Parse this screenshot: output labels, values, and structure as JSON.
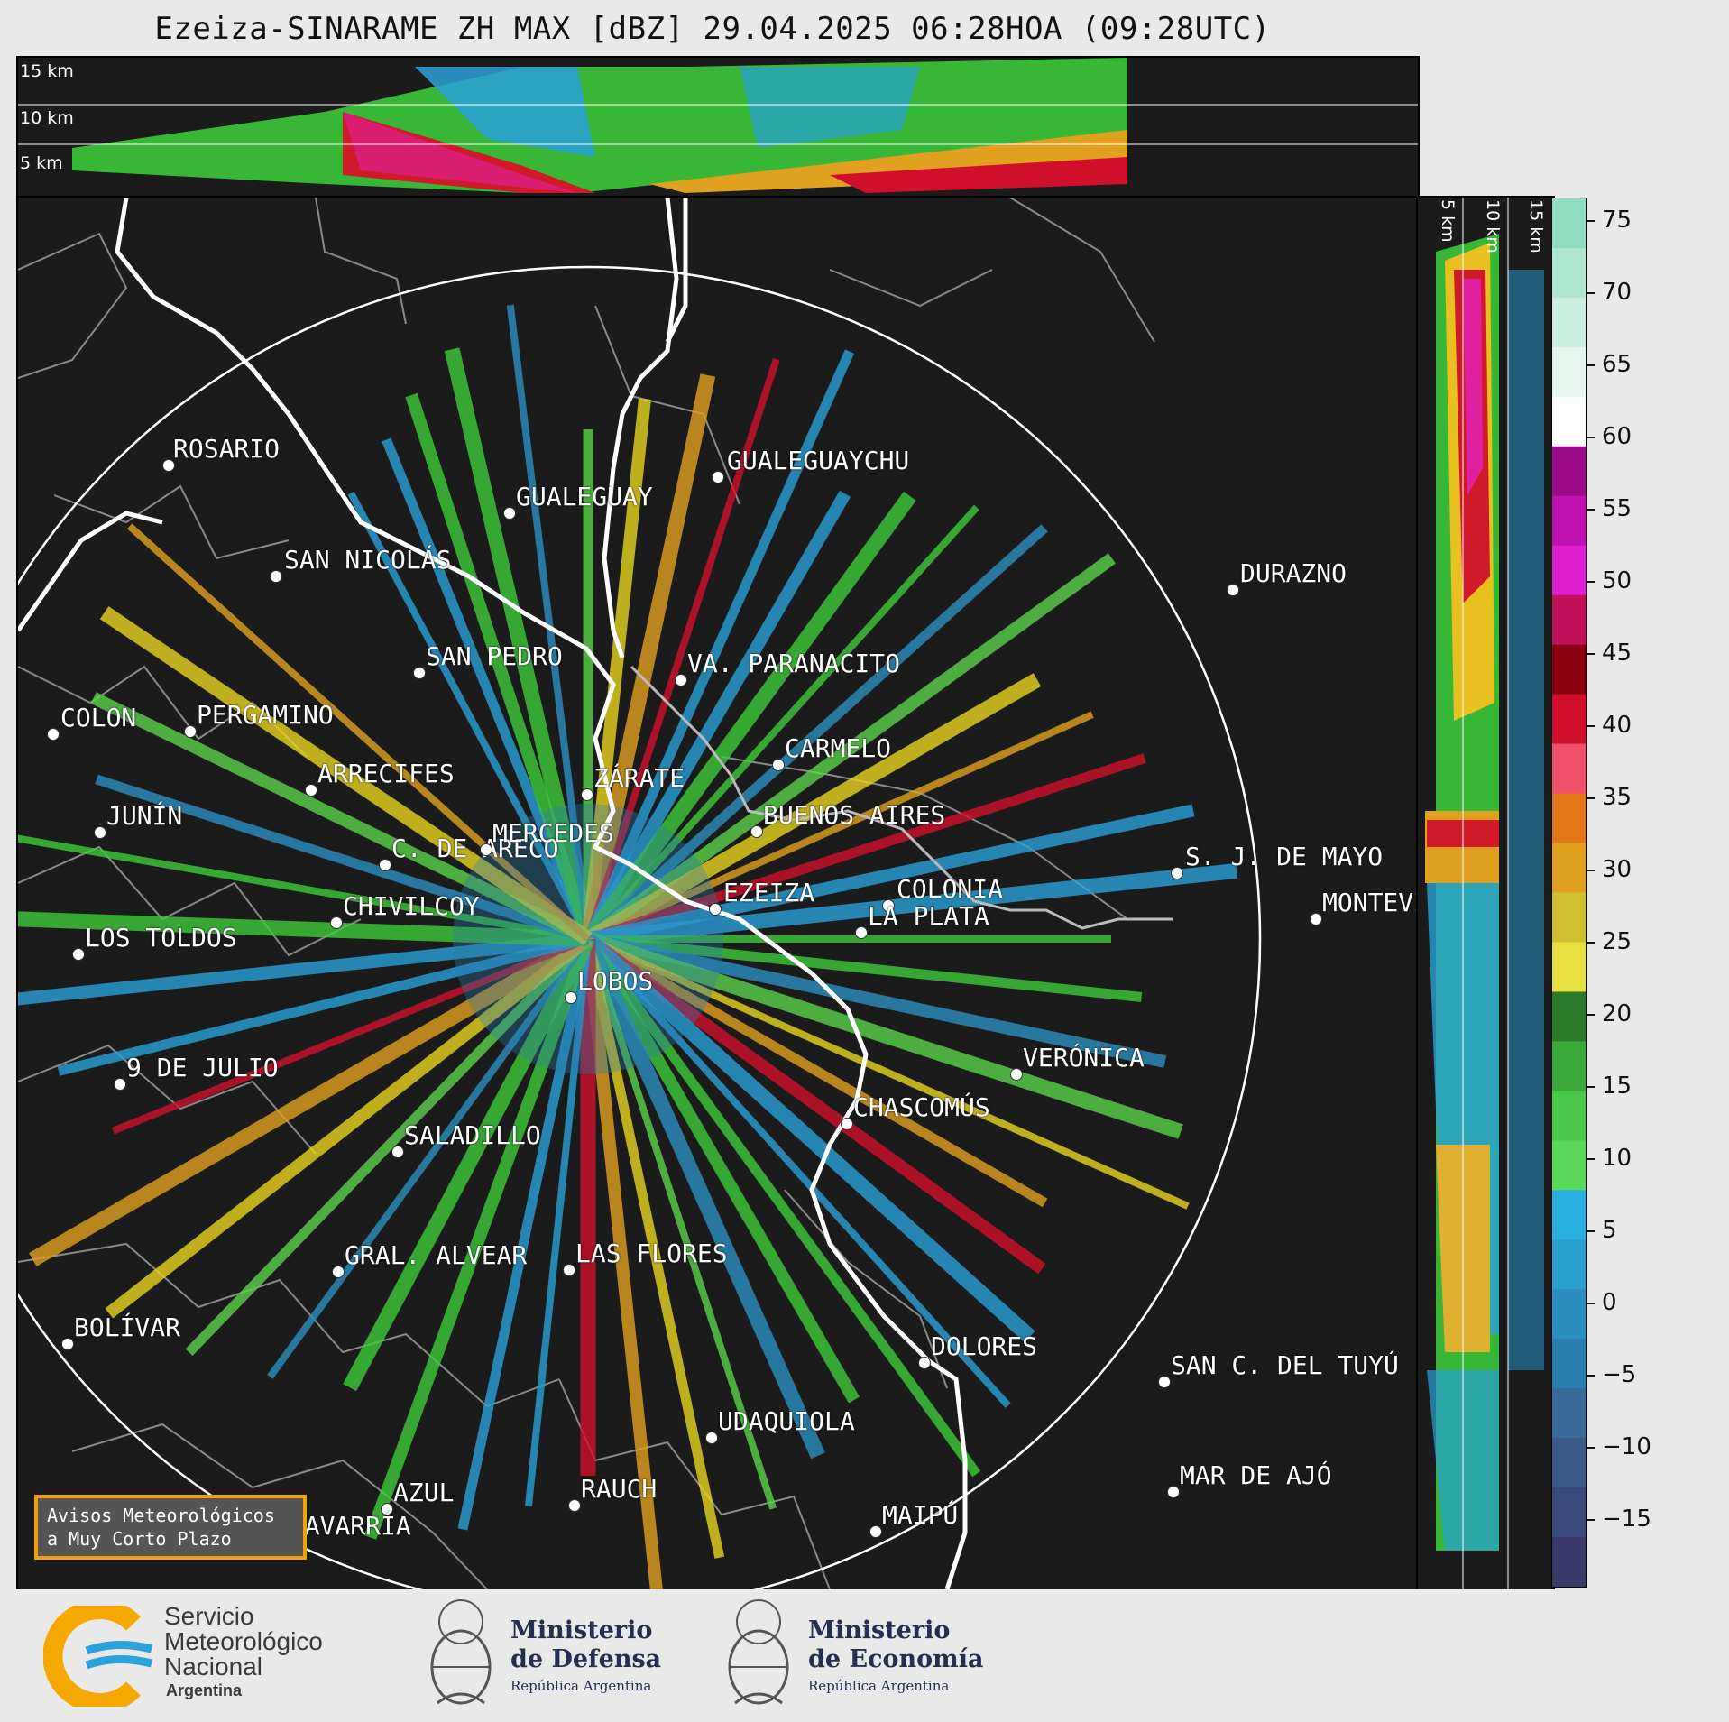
{
  "title": "Ezeiza-SINARAME ZH MAX [dBZ] 29.04.2025 06:28HOA (09:28UTC)",
  "height_labels_top": [
    "15 km",
    "10 km",
    "5 km"
  ],
  "height_labels_right": [
    "5 km",
    "10 km",
    "15 km"
  ],
  "colorbar": {
    "ticks": [
      "75",
      "70",
      "65",
      "60",
      "55",
      "50",
      "45",
      "40",
      "35",
      "30",
      "25",
      "20",
      "15",
      "10",
      "5",
      "0",
      "−5",
      "−10",
      "−15"
    ]
  },
  "cities": [
    {
      "name": "ROSARIO"
    },
    {
      "name": "GUALEGUAYCHU"
    },
    {
      "name": "GUALEGUAY"
    },
    {
      "name": "SAN NICOLÁS"
    },
    {
      "name": "DURAZNO"
    },
    {
      "name": "SAN PEDRO"
    },
    {
      "name": "VA. PARANACITO"
    },
    {
      "name": "COLON"
    },
    {
      "name": "PERGAMINO"
    },
    {
      "name": "CARMELO"
    },
    {
      "name": "ARRECIFES"
    },
    {
      "name": "ZÁRATE"
    },
    {
      "name": "C. DE ARECO"
    },
    {
      "name": "S. J. DE MAYO"
    },
    {
      "name": "COLONIA"
    },
    {
      "name": "JUNÍN"
    },
    {
      "name": "BUENOS AIRES"
    },
    {
      "name": "MERCEDES"
    },
    {
      "name": "EZEIZA"
    },
    {
      "name": "MONTEVIDEO"
    },
    {
      "name": "CHIVILCOY"
    },
    {
      "name": "LA PLATA"
    },
    {
      "name": "LOS TOLDOS"
    },
    {
      "name": "LOBOS"
    },
    {
      "name": "VERÓNICA"
    },
    {
      "name": "9 DE JULIO"
    },
    {
      "name": "CHASCOMÚS"
    },
    {
      "name": "SALADILLO"
    },
    {
      "name": "GRAL. ALVEAR"
    },
    {
      "name": "LAS FLORES"
    },
    {
      "name": "BOLÍVAR"
    },
    {
      "name": "DOLORES"
    },
    {
      "name": "SAN C. DEL TUYÚ"
    },
    {
      "name": "UDAQUIOLA"
    },
    {
      "name": "AZUL"
    },
    {
      "name": "RAUCH"
    },
    {
      "name": "MAR DE AJÓ"
    },
    {
      "name": "OLAVARRÍA"
    },
    {
      "name": "MAIPÚ"
    }
  ],
  "avisos": {
    "line1": "Avisos Meteorológicos",
    "line2": "a Muy Corto Plazo"
  },
  "footer": {
    "smn": {
      "line1": "Servicio",
      "line2": "Meteorológico",
      "line3": "Nacional",
      "line4": "Argentina"
    },
    "defensa": {
      "line1": "Ministerio",
      "line2": "de Defensa",
      "sub": "República Argentina"
    },
    "economia": {
      "line1": "Ministerio",
      "line2": "de Economía",
      "sub": "República Argentina"
    }
  },
  "colors": {
    "background": "#1b1b1b",
    "range_ring": "#ffffff",
    "coast": "#ffffff",
    "borders": "#8a8a8a"
  }
}
